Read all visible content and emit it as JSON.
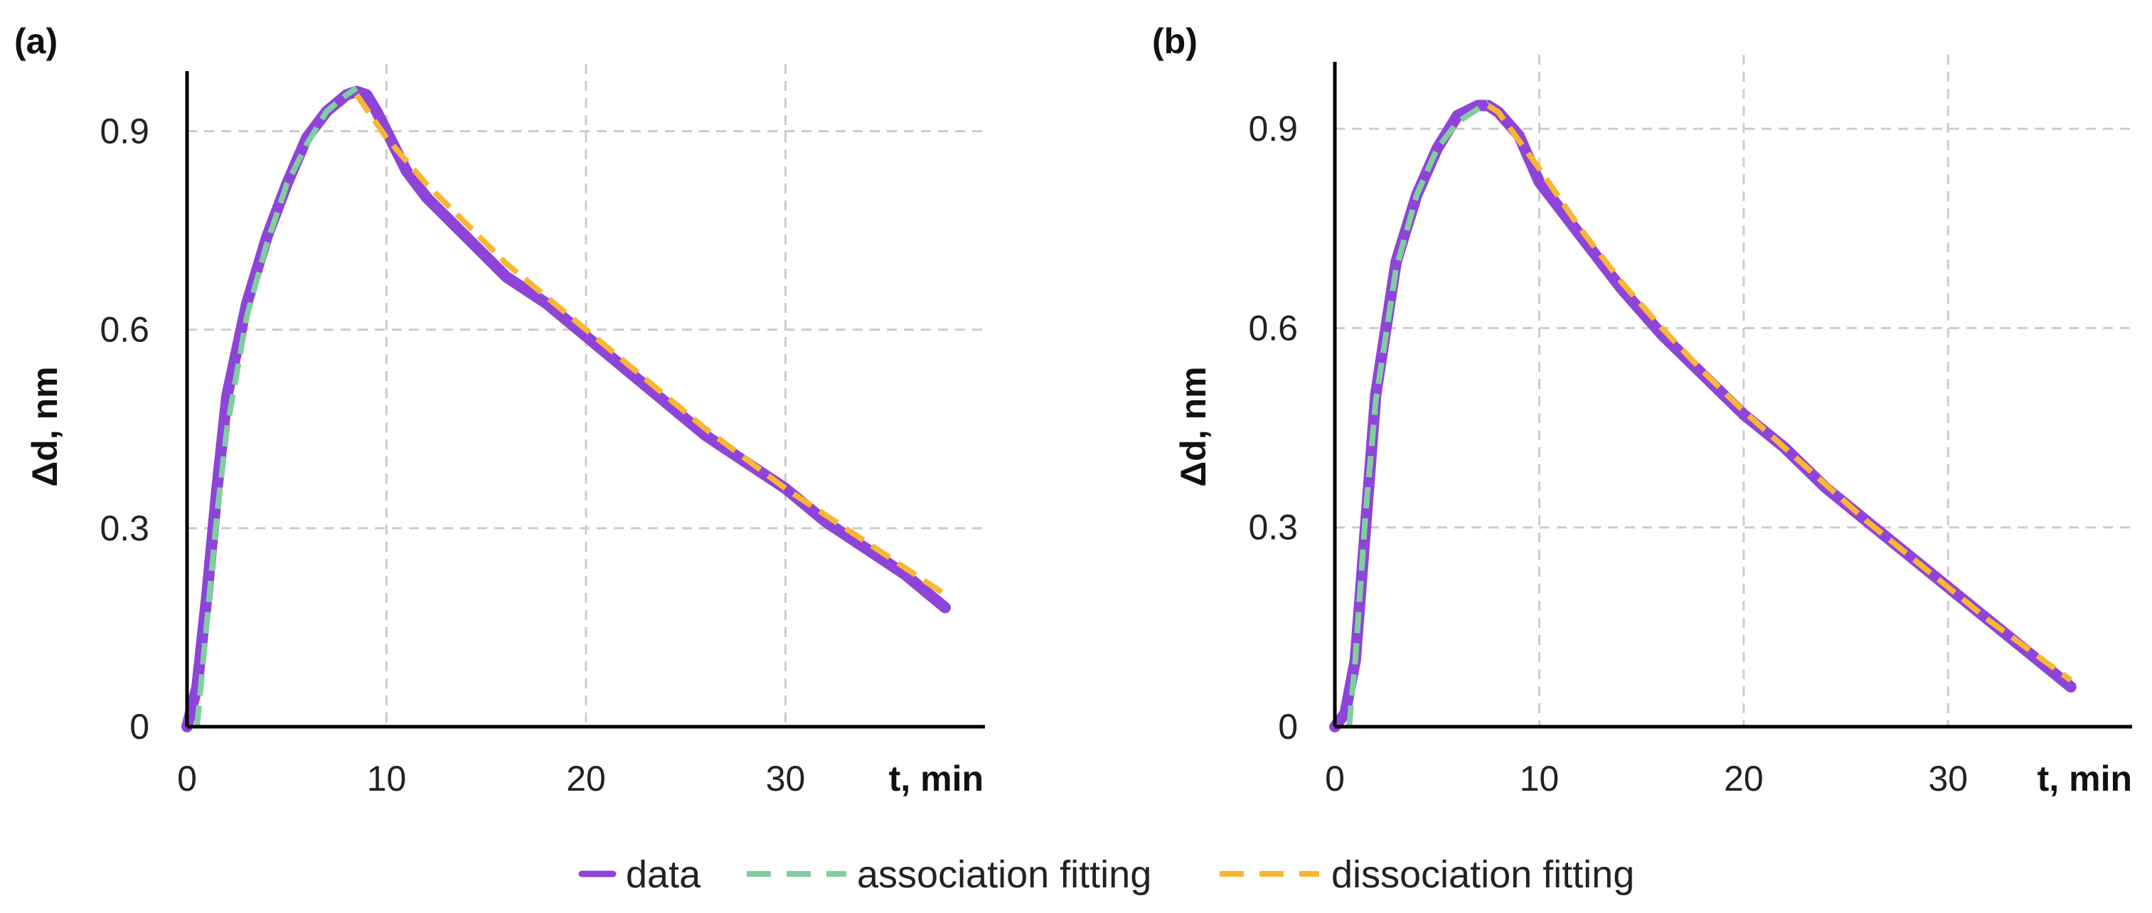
{
  "colors": {
    "data": "#8e44d8",
    "association": "#7fcf9c",
    "dissociation": "#f7b633",
    "grid": "#cccccc",
    "axis": "#000000"
  },
  "legend": {
    "data_label": "data",
    "association_label": "association fitting",
    "dissociation_label": "dissociation fitting"
  },
  "chart_data": [
    {
      "panel": "(a)",
      "type": "line",
      "xlabel": "t, min",
      "ylabel": "Δd, nm",
      "xlim": [
        0,
        40
      ],
      "ylim": [
        0,
        0.98
      ],
      "xticks": [
        "0",
        "10",
        "20",
        "30"
      ],
      "yticks": [
        "0",
        "0.3",
        "0.6",
        "0.9"
      ],
      "grid": true,
      "series": [
        {
          "name": "data",
          "x": [
            0,
            0.5,
            1,
            1.5,
            2,
            3,
            4,
            5,
            6,
            7,
            8,
            8.5,
            9,
            9.5,
            10,
            11,
            12,
            13,
            14,
            15,
            16,
            17,
            18,
            20,
            22,
            24,
            26,
            28,
            30,
            32,
            34,
            36,
            38
          ],
          "values": [
            0,
            0.06,
            0.2,
            0.36,
            0.5,
            0.64,
            0.74,
            0.82,
            0.89,
            0.93,
            0.955,
            0.96,
            0.955,
            0.93,
            0.9,
            0.84,
            0.8,
            0.77,
            0.74,
            0.71,
            0.68,
            0.66,
            0.64,
            0.59,
            0.54,
            0.49,
            0.44,
            0.4,
            0.36,
            0.31,
            0.27,
            0.23,
            0.18
          ]
        },
        {
          "name": "association fitting",
          "x": [
            0.5,
            1,
            1.5,
            2,
            3,
            4,
            5,
            6,
            7,
            8,
            8.5
          ],
          "values": [
            0.0,
            0.16,
            0.32,
            0.45,
            0.62,
            0.73,
            0.82,
            0.88,
            0.93,
            0.955,
            0.965
          ]
        },
        {
          "name": "dissociation fitting",
          "x": [
            8.5,
            10,
            12,
            14,
            16,
            18,
            20,
            22,
            24,
            26,
            28,
            30,
            32,
            34,
            36,
            38
          ],
          "values": [
            0.955,
            0.89,
            0.82,
            0.76,
            0.7,
            0.65,
            0.6,
            0.55,
            0.5,
            0.45,
            0.405,
            0.36,
            0.32,
            0.28,
            0.24,
            0.2
          ]
        }
      ]
    },
    {
      "panel": "(b)",
      "type": "line",
      "xlabel": "t, min",
      "ylabel": "Δd, nm",
      "xlim": [
        0,
        39
      ],
      "ylim": [
        0,
        0.99
      ],
      "xticks": [
        "0",
        "10",
        "20",
        "30"
      ],
      "yticks": [
        "0",
        "0.3",
        "0.6",
        "0.9"
      ],
      "grid": true,
      "series": [
        {
          "name": "data",
          "x": [
            0,
            0.5,
            1,
            1.5,
            2,
            3,
            4,
            5,
            6,
            7,
            7.5,
            8,
            9,
            10,
            12,
            14,
            16,
            18,
            20,
            22,
            24,
            26,
            28,
            30,
            32,
            34,
            36
          ],
          "values": [
            0,
            0.02,
            0.1,
            0.3,
            0.5,
            0.7,
            0.8,
            0.87,
            0.92,
            0.935,
            0.935,
            0.925,
            0.89,
            0.82,
            0.74,
            0.66,
            0.59,
            0.53,
            0.47,
            0.42,
            0.36,
            0.31,
            0.26,
            0.21,
            0.16,
            0.11,
            0.06
          ]
        },
        {
          "name": "association fitting",
          "x": [
            0.7,
            1,
            1.5,
            2,
            3,
            4,
            5,
            6,
            7,
            7.5
          ],
          "values": [
            0.0,
            0.1,
            0.32,
            0.49,
            0.69,
            0.8,
            0.87,
            0.91,
            0.93,
            0.94
          ]
        },
        {
          "name": "dissociation fitting",
          "x": [
            7.5,
            8,
            10,
            12,
            14,
            16,
            18,
            20,
            22,
            24,
            26,
            28,
            30,
            32,
            34,
            36
          ],
          "values": [
            0.935,
            0.925,
            0.84,
            0.75,
            0.67,
            0.6,
            0.535,
            0.475,
            0.42,
            0.365,
            0.31,
            0.26,
            0.21,
            0.16,
            0.115,
            0.07
          ]
        }
      ]
    }
  ]
}
